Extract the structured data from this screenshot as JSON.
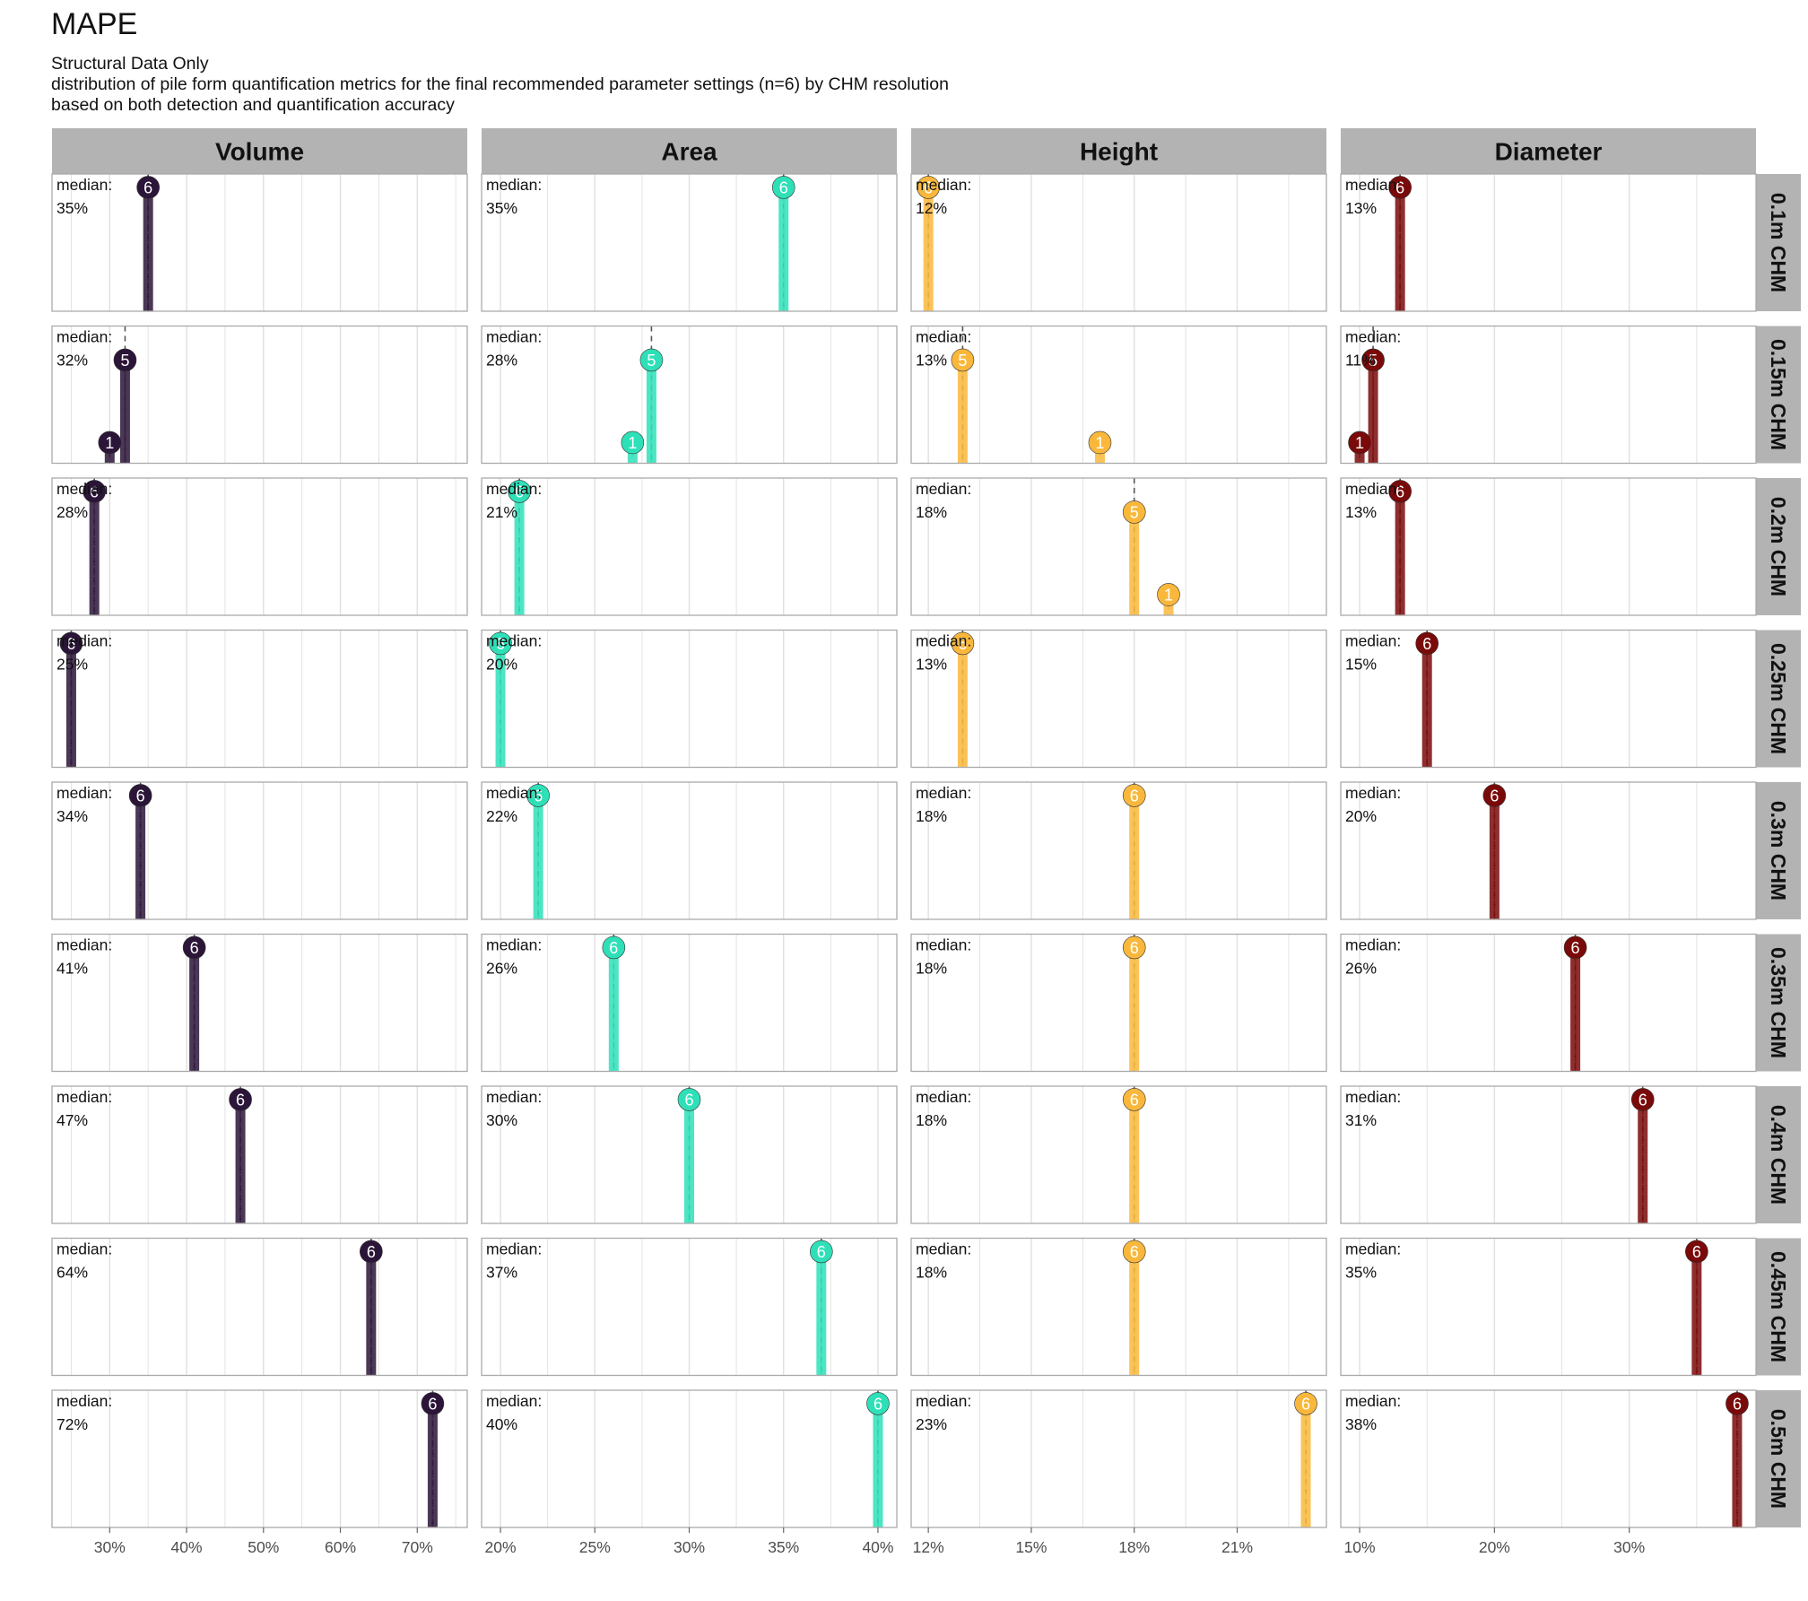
{
  "title": "MAPE",
  "subtitle_lines": [
    "Structural Data Only",
    "distribution of pile form quantification metrics for the final recommended parameter settings (n=6) by CHM resolution",
    "based on both detection and quantification accuracy"
  ],
  "median_label": "median:",
  "colors": {
    "Volume": "#2b1538",
    "Area": "#2ee0b8",
    "Height": "#f9b83c",
    "Diameter": "#7a0a0a",
    "strip_bg": "#b3b3b3",
    "grid": "#e0e0e0",
    "panel_border": "#aaaaaa"
  },
  "chart_data": {
    "type": "bar",
    "facet_columns": [
      "Volume",
      "Area",
      "Height",
      "Diameter"
    ],
    "facet_rows": [
      "0.1m CHM",
      "0.15m CHM",
      "0.2m CHM",
      "0.25m CHM",
      "0.3m CHM",
      "0.35m CHM",
      "0.4m CHM",
      "0.45m CHM",
      "0.5m CHM"
    ],
    "x_axes": {
      "Volume": {
        "xlim": [
          22.5,
          76.5
        ],
        "ticks": [
          30,
          40,
          50,
          60,
          70
        ],
        "tick_labels": [
          "30%",
          "40%",
          "50%",
          "60%",
          "70%"
        ]
      },
      "Area": {
        "xlim": [
          19.0,
          41.0
        ],
        "ticks": [
          20,
          25,
          30,
          35,
          40
        ],
        "tick_labels": [
          "20%",
          "25%",
          "30%",
          "35%",
          "40%"
        ]
      },
      "Height": {
        "xlim": [
          11.5,
          23.6
        ],
        "ticks": [
          12,
          15,
          18,
          21
        ],
        "tick_labels": [
          "12%",
          "15%",
          "18%",
          "21%"
        ]
      },
      "Diameter": {
        "xlim": [
          8.6,
          39.4
        ],
        "ticks": [
          10,
          20,
          30
        ],
        "tick_labels": [
          "10%",
          "20%",
          "30%"
        ]
      }
    },
    "y_max": 6.3,
    "cells": {
      "Volume": [
        {
          "median": 35,
          "median_label": "35%",
          "points": [
            {
              "x": 35,
              "count": 6
            }
          ]
        },
        {
          "median": 32,
          "median_label": "32%",
          "points": [
            {
              "x": 30,
              "count": 1
            },
            {
              "x": 32,
              "count": 5
            }
          ]
        },
        {
          "median": 28,
          "median_label": "28%",
          "points": [
            {
              "x": 28,
              "count": 6
            }
          ]
        },
        {
          "median": 25,
          "median_label": "25%",
          "points": [
            {
              "x": 25,
              "count": 6
            }
          ]
        },
        {
          "median": 34,
          "median_label": "34%",
          "points": [
            {
              "x": 34,
              "count": 6
            }
          ]
        },
        {
          "median": 41,
          "median_label": "41%",
          "points": [
            {
              "x": 41,
              "count": 6
            }
          ]
        },
        {
          "median": 47,
          "median_label": "47%",
          "points": [
            {
              "x": 47,
              "count": 6
            }
          ]
        },
        {
          "median": 64,
          "median_label": "64%",
          "points": [
            {
              "x": 64,
              "count": 6
            }
          ]
        },
        {
          "median": 72,
          "median_label": "72%",
          "points": [
            {
              "x": 72,
              "count": 6
            }
          ]
        }
      ],
      "Area": [
        {
          "median": 35,
          "median_label": "35%",
          "points": [
            {
              "x": 35,
              "count": 6
            }
          ]
        },
        {
          "median": 28,
          "median_label": "28%",
          "points": [
            {
              "x": 27,
              "count": 1
            },
            {
              "x": 28,
              "count": 5
            }
          ]
        },
        {
          "median": 21,
          "median_label": "21%",
          "points": [
            {
              "x": 21,
              "count": 6
            }
          ]
        },
        {
          "median": 20,
          "median_label": "20%",
          "points": [
            {
              "x": 20,
              "count": 6
            }
          ]
        },
        {
          "median": 22,
          "median_label": "22%",
          "points": [
            {
              "x": 22,
              "count": 6
            }
          ]
        },
        {
          "median": 26,
          "median_label": "26%",
          "points": [
            {
              "x": 26,
              "count": 6
            }
          ]
        },
        {
          "median": 30,
          "median_label": "30%",
          "points": [
            {
              "x": 30,
              "count": 6
            }
          ]
        },
        {
          "median": 37,
          "median_label": "37%",
          "points": [
            {
              "x": 37,
              "count": 6
            }
          ]
        },
        {
          "median": 40,
          "median_label": "40%",
          "points": [
            {
              "x": 40,
              "count": 6
            }
          ]
        }
      ],
      "Height": [
        {
          "median": 12,
          "median_label": "12%",
          "points": [
            {
              "x": 12,
              "count": 6
            }
          ]
        },
        {
          "median": 13,
          "median_label": "13%",
          "points": [
            {
              "x": 13,
              "count": 5
            },
            {
              "x": 17,
              "count": 1
            }
          ]
        },
        {
          "median": 18,
          "median_label": "18%",
          "points": [
            {
              "x": 18,
              "count": 5
            },
            {
              "x": 19,
              "count": 1
            }
          ]
        },
        {
          "median": 13,
          "median_label": "13%",
          "points": [
            {
              "x": 13,
              "count": 6
            }
          ]
        },
        {
          "median": 18,
          "median_label": "18%",
          "points": [
            {
              "x": 18,
              "count": 6
            }
          ]
        },
        {
          "median": 18,
          "median_label": "18%",
          "points": [
            {
              "x": 18,
              "count": 6
            }
          ]
        },
        {
          "median": 18,
          "median_label": "18%",
          "points": [
            {
              "x": 18,
              "count": 6
            }
          ]
        },
        {
          "median": 18,
          "median_label": "18%",
          "points": [
            {
              "x": 18,
              "count": 6
            }
          ]
        },
        {
          "median": 23,
          "median_label": "23%",
          "points": [
            {
              "x": 23,
              "count": 6
            }
          ]
        }
      ],
      "Diameter": [
        {
          "median": 13,
          "median_label": "13%",
          "points": [
            {
              "x": 13,
              "count": 6
            }
          ]
        },
        {
          "median": 11,
          "median_label": "11%",
          "points": [
            {
              "x": 10,
              "count": 1
            },
            {
              "x": 11,
              "count": 5
            }
          ]
        },
        {
          "median": 13,
          "median_label": "13%",
          "points": [
            {
              "x": 13,
              "count": 6
            }
          ]
        },
        {
          "median": 15,
          "median_label": "15%",
          "points": [
            {
              "x": 15,
              "count": 6
            }
          ]
        },
        {
          "median": 20,
          "median_label": "20%",
          "points": [
            {
              "x": 20,
              "count": 6
            }
          ]
        },
        {
          "median": 26,
          "median_label": "26%",
          "points": [
            {
              "x": 26,
              "count": 6
            }
          ]
        },
        {
          "median": 31,
          "median_label": "31%",
          "points": [
            {
              "x": 31,
              "count": 6
            }
          ]
        },
        {
          "median": 35,
          "median_label": "35%",
          "points": [
            {
              "x": 35,
              "count": 6
            }
          ]
        },
        {
          "median": 38,
          "median_label": "38%",
          "points": [
            {
              "x": 38,
              "count": 6
            }
          ]
        }
      ]
    }
  }
}
